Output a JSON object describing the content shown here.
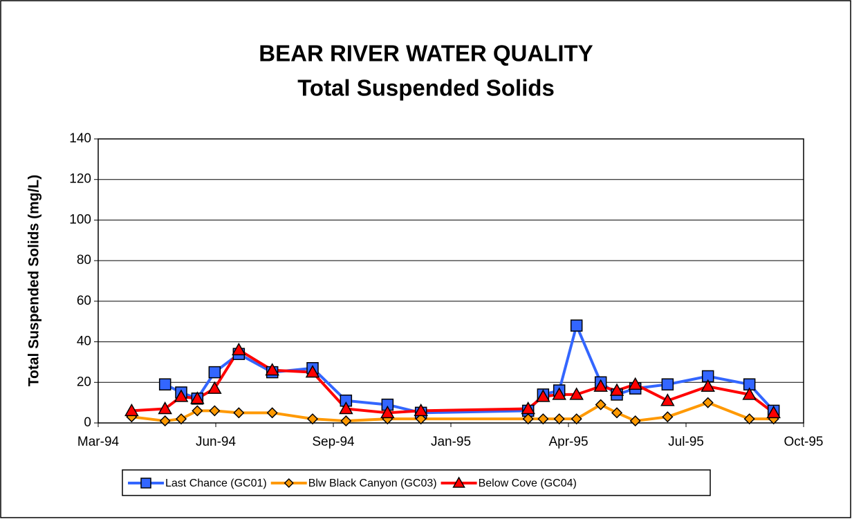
{
  "chart_data": {
    "type": "line",
    "title": "BEAR RIVER WATER QUALITY",
    "subtitle": "Total Suspended Solids",
    "y_label": "Total Suspended Solids (mg/L)",
    "x": [
      34423,
      34452,
      34466,
      34480,
      34495,
      34516,
      34545,
      34580,
      34609,
      34645,
      34674,
      34767,
      34780,
      34794,
      34809,
      34830,
      34844,
      34860,
      34888,
      34923,
      34959,
      34980
    ],
    "series": [
      {
        "name": "Last Chance (GC01)",
        "color": "#3366ff",
        "marker": "square",
        "values": [
          null,
          19,
          15,
          12,
          25,
          34,
          25,
          27,
          11,
          9,
          5,
          6,
          14,
          16,
          48,
          20,
          14,
          17,
          19,
          23,
          19,
          6
        ]
      },
      {
        "name": "Blw Black Canyon (GC03)",
        "color": "#ff9900",
        "marker": "diamond",
        "values": [
          3,
          1,
          2,
          6,
          6,
          5,
          5,
          2,
          1,
          2,
          2,
          2,
          2,
          2,
          2,
          9,
          5,
          1,
          3,
          10,
          2,
          2
        ]
      },
      {
        "name": "Below Cove (GC04)",
        "color": "#ff0000",
        "marker": "triangle",
        "values": [
          6,
          7,
          13,
          12,
          17,
          36,
          26,
          25,
          7,
          5,
          6,
          7,
          13,
          14,
          14,
          18,
          16,
          19,
          11,
          18,
          14,
          5
        ]
      }
    ],
    "xlim": [
      34394,
      35006
    ],
    "xticks": [
      {
        "value": 34394,
        "label": "Mar-94"
      },
      {
        "value": 34496,
        "label": "Jun-94"
      },
      {
        "value": 34598,
        "label": "Sep-94"
      },
      {
        "value": 34700,
        "label": "Jan-95"
      },
      {
        "value": 34802,
        "label": "Apr-95"
      },
      {
        "value": 34904,
        "label": "Jul-95"
      },
      {
        "value": 35006,
        "label": "Oct-95"
      }
    ],
    "ylim": [
      0,
      140
    ],
    "yticks": [
      0,
      20,
      40,
      60,
      80,
      100,
      120,
      140
    ],
    "grid": true,
    "legend": "bottom"
  }
}
